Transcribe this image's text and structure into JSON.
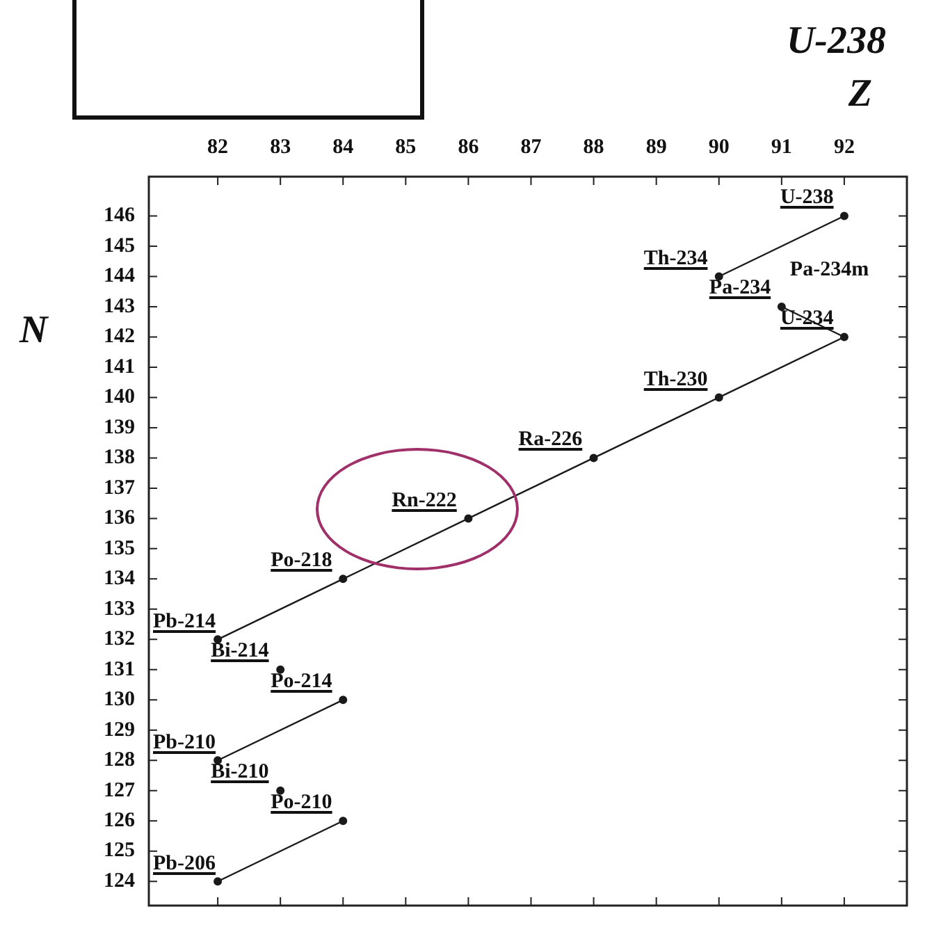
{
  "chart_data": {
    "type": "line",
    "title": "U-238",
    "xlabel": "Z",
    "ylabel": "N",
    "series": [
      {
        "color": "#1a1a1a",
        "x": [
          92,
          90
        ],
        "values": [
          146,
          144
        ]
      },
      {
        "color": "#1a1a1a",
        "x": [
          91,
          92
        ],
        "values": [
          143,
          142
        ]
      },
      {
        "color": "#1a1a1a",
        "x": [
          92,
          90,
          88,
          86,
          84,
          82
        ],
        "values": [
          142,
          140,
          138,
          136,
          134,
          132
        ]
      },
      {
        "color": "#1a1a1a",
        "x": [
          84,
          82
        ],
        "values": [
          130,
          128
        ]
      },
      {
        "color": "#1a1a1a",
        "x": [
          84,
          82
        ],
        "values": [
          126,
          124
        ]
      },
      {
        "type": "scatter",
        "marker": "circle",
        "color": "#1a1a1a",
        "x": [
          92,
          90,
          91,
          92,
          90,
          88,
          86,
          84,
          82,
          83,
          84,
          82,
          83,
          84,
          82
        ],
        "values": [
          146,
          144,
          143,
          142,
          140,
          138,
          136,
          134,
          132,
          131,
          130,
          128,
          127,
          126,
          124
        ]
      }
    ],
    "marker": "none",
    "line_style": "solid",
    "grid": false,
    "legend": false,
    "xlim": [
      80.9,
      93
    ],
    "xticks": [
      82,
      83,
      84,
      85,
      86,
      87,
      88,
      89,
      90,
      91,
      92
    ],
    "ylim": [
      123.2,
      147.3
    ],
    "yticks": [
      124,
      125,
      126,
      127,
      128,
      129,
      130,
      131,
      132,
      133,
      134,
      135,
      136,
      137,
      138,
      139,
      140,
      141,
      142,
      143,
      144,
      145,
      146
    ],
    "annotations": [
      {
        "text": "U-238",
        "x": 92,
        "y": 146
      },
      {
        "text": "Th-234",
        "x": 90,
        "y": 144
      },
      {
        "text": "Pa-234",
        "x": 91,
        "y": 143
      },
      {
        "text": "Pa-234m",
        "x": 91,
        "y": 143
      },
      {
        "text": "U-234",
        "x": 92,
        "y": 142
      },
      {
        "text": "Th-230",
        "x": 90,
        "y": 140
      },
      {
        "text": "Ra-226",
        "x": 88,
        "y": 138
      },
      {
        "text": "Rn-222",
        "x": 86,
        "y": 136
      },
      {
        "text": "Po-218",
        "x": 84,
        "y": 134
      },
      {
        "text": "Pb-214",
        "x": 82,
        "y": 132
      },
      {
        "text": "Bi-214",
        "x": 83,
        "y": 131
      },
      {
        "text": "Po-214",
        "x": 84,
        "y": 130
      },
      {
        "text": "Pb-210",
        "x": 82,
        "y": 128
      },
      {
        "text": "Bi-210",
        "x": 83,
        "y": 127
      },
      {
        "text": "Po-210",
        "x": 84,
        "y": 126
      },
      {
        "text": "Pb-206",
        "x": 82,
        "y": 124
      }
    ]
  }
}
